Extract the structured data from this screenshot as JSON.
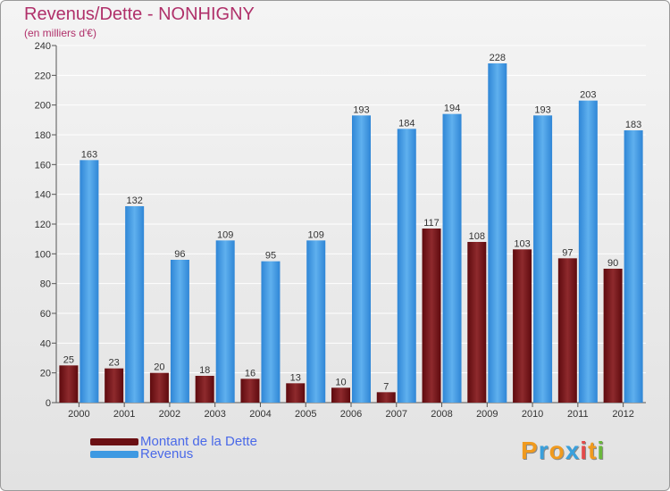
{
  "chart_data": {
    "type": "bar",
    "title": "Revenus/Dette - NONHIGNY",
    "subtitle": "(en milliers d'€)",
    "categories": [
      "2000",
      "2001",
      "2002",
      "2003",
      "2004",
      "2005",
      "2006",
      "2007",
      "2008",
      "2009",
      "2010",
      "2011",
      "2012"
    ],
    "series": [
      {
        "name": "Montant de la Dette",
        "color": "#7a1418",
        "values": [
          25,
          23,
          20,
          18,
          16,
          13,
          10,
          7,
          117,
          108,
          103,
          97,
          90
        ]
      },
      {
        "name": "Revenus",
        "color": "#3d99e2",
        "values": [
          163,
          132,
          96,
          109,
          95,
          109,
          193,
          184,
          194,
          228,
          193,
          203,
          183
        ]
      }
    ],
    "ylim": [
      0,
      240
    ],
    "yticks": [
      0,
      20,
      40,
      60,
      80,
      100,
      120,
      140,
      160,
      180,
      200,
      220,
      240
    ],
    "grid": true,
    "legend": "bottom-left"
  },
  "logo": {
    "text": "Proxiti",
    "letters": [
      "P",
      "r",
      "o",
      "x",
      "i",
      "t",
      "i"
    ],
    "colors": [
      "#f09a1e",
      "#3aa0dc",
      "#f09a1e",
      "#3aa0dc",
      "#e34b4b",
      "#f09a1e",
      "#6ab83c"
    ]
  }
}
